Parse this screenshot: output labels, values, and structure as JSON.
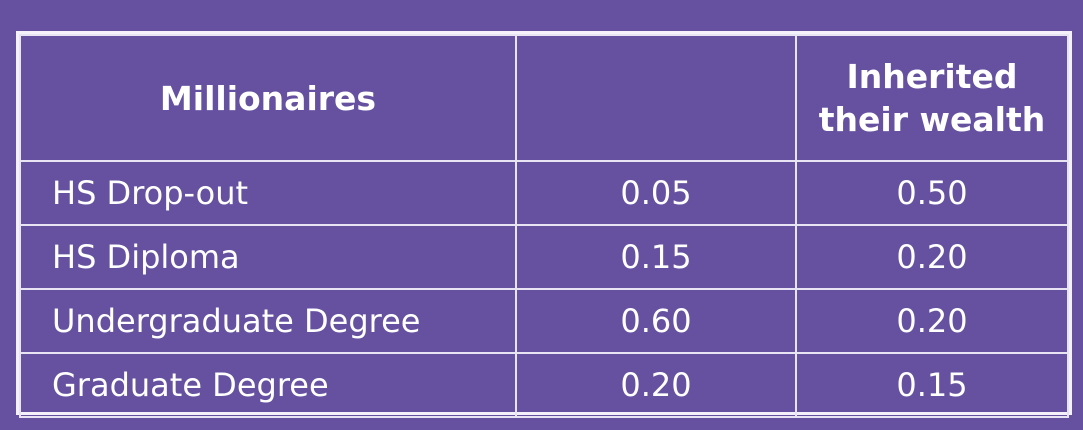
{
  "table": {
    "headers": [
      "Millionaires",
      "",
      "Inherited their wealth"
    ],
    "header_lines_col3": [
      "Inherited",
      "their wealth"
    ],
    "rows": [
      {
        "label": "HS Drop-out",
        "value1": "0.05",
        "value2": "0.50"
      },
      {
        "label": "HS Diploma",
        "value1": "0.15",
        "value2": "0.20"
      },
      {
        "label": "Undergraduate Degree",
        "value1": "0.60",
        "value2": "0.20"
      },
      {
        "label": "Graduate Degree",
        "value1": "0.20",
        "value2": "0.15"
      }
    ]
  },
  "colors": {
    "background": "#6651a0",
    "border": "#f4f1fa",
    "text": "#ffffff"
  }
}
